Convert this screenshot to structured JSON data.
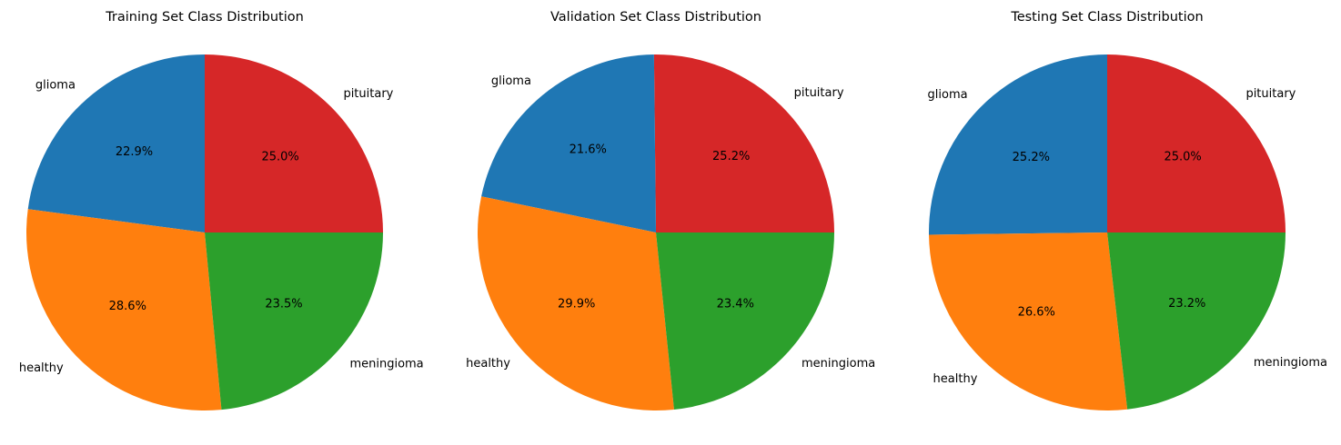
{
  "chart_data": [
    {
      "type": "pie",
      "title": "Training Set Class Distribution",
      "labels": [
        "pituitary",
        "glioma",
        "healthy",
        "meningioma"
      ],
      "values": [
        25.0,
        22.9,
        28.6,
        23.5
      ],
      "value_labels": [
        "25.0%",
        "22.9%",
        "28.6%",
        "23.5%"
      ],
      "colors": [
        "#d62728",
        "#1f77b4",
        "#ff7f0e",
        "#2ca02c"
      ]
    },
    {
      "type": "pie",
      "title": "Validation Set Class Distribution",
      "labels": [
        "pituitary",
        "glioma",
        "healthy",
        "meningioma"
      ],
      "values": [
        25.2,
        21.6,
        29.9,
        23.4
      ],
      "value_labels": [
        "25.2%",
        "21.6%",
        "29.9%",
        "23.4%"
      ],
      "colors": [
        "#d62728",
        "#1f77b4",
        "#ff7f0e",
        "#2ca02c"
      ]
    },
    {
      "type": "pie",
      "title": "Testing Set Class Distribution",
      "labels": [
        "pituitary",
        "glioma",
        "healthy",
        "meningioma"
      ],
      "values": [
        25.0,
        25.2,
        26.6,
        23.2
      ],
      "value_labels": [
        "25.0%",
        "25.2%",
        "26.6%",
        "23.2%"
      ],
      "colors": [
        "#d62728",
        "#1f77b4",
        "#ff7f0e",
        "#2ca02c"
      ]
    }
  ]
}
